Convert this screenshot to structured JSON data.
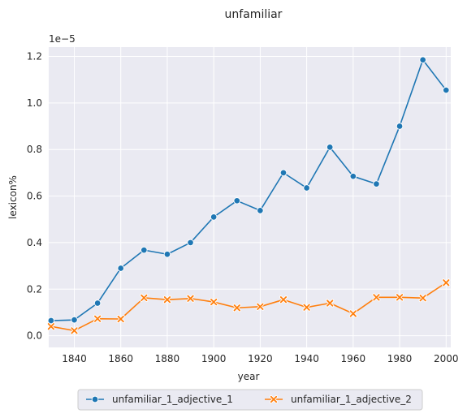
{
  "chart_data": {
    "type": "line",
    "title": "unfamiliar",
    "xlabel": "year",
    "ylabel": "lexicon%",
    "y_scale_label": "1e−5",
    "xlim": [
      1829,
      2002
    ],
    "ylim": [
      -0.05,
      1.24
    ],
    "x_ticks": [
      1840,
      1860,
      1880,
      1900,
      1920,
      1940,
      1960,
      1980,
      2000
    ],
    "y_ticks": [
      0.0,
      0.2,
      0.4,
      0.6,
      0.8,
      1.0,
      1.2
    ],
    "y_tick_labels": [
      "0.0",
      "0.2",
      "0.4",
      "0.6",
      "0.8",
      "1.0",
      "1.2"
    ],
    "grid": true,
    "legend_position": "bottom-center",
    "x": [
      1830,
      1840,
      1850,
      1860,
      1870,
      1880,
      1890,
      1900,
      1910,
      1920,
      1930,
      1940,
      1950,
      1960,
      1970,
      1980,
      1990,
      2000
    ],
    "series": [
      {
        "name": "unfamiliar_1_adjective_1",
        "color": "#1f77b4",
        "marker": "circle",
        "values": [
          0.065,
          0.068,
          0.14,
          0.29,
          0.368,
          0.35,
          0.4,
          0.51,
          0.58,
          0.538,
          0.7,
          0.635,
          0.81,
          0.685,
          0.652,
          0.9,
          1.185,
          1.055
        ]
      },
      {
        "name": "unfamiliar_1_adjective_2",
        "color": "#ff7f0e",
        "marker": "x",
        "values": [
          0.04,
          0.022,
          0.073,
          0.072,
          0.163,
          0.155,
          0.16,
          0.145,
          0.12,
          0.125,
          0.155,
          0.122,
          0.14,
          0.095,
          0.165,
          0.165,
          0.162,
          0.228
        ]
      }
    ]
  }
}
